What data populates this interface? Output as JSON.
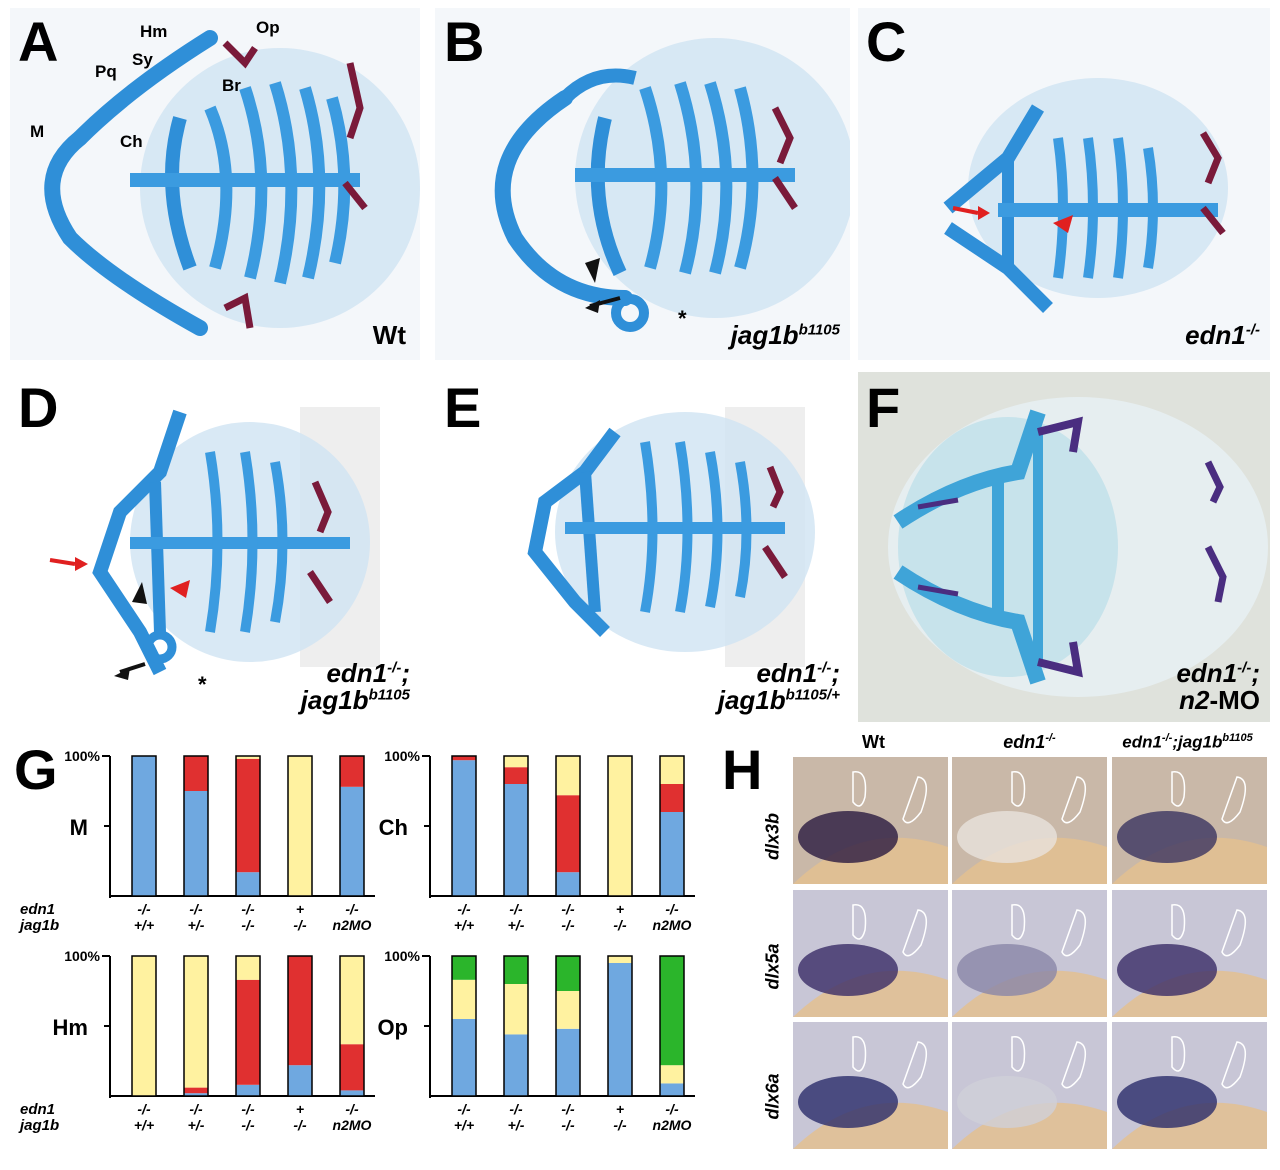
{
  "panels": {
    "A": {
      "letter": "A",
      "caption": "Wt"
    },
    "B": {
      "letter": "B",
      "caption_main": "jag1b",
      "caption_sup": "b1105"
    },
    "C": {
      "letter": "C",
      "caption_main": "edn1",
      "caption_sup": "-/-"
    },
    "D": {
      "letter": "D",
      "caption_l1_main": "edn1",
      "caption_l1_sup": "-/-",
      "caption_l1_tail": ";",
      "caption_l2_main": "jag1b",
      "caption_l2_sup": "b1105"
    },
    "E": {
      "letter": "E",
      "caption_l1_main": "edn1",
      "caption_l1_sup": "-/-",
      "caption_l1_tail": ";",
      "caption_l2_main": "jag1b",
      "caption_l2_sup": "b1105/+"
    },
    "F": {
      "letter": "F",
      "caption_l1_main": "edn1",
      "caption_l1_sup": "-/-",
      "caption_l1_tail": ";",
      "caption_l2_main": "n2",
      "caption_l2_tail": "-MO"
    },
    "G": {
      "letter": "G"
    },
    "H": {
      "letter": "H"
    }
  },
  "structure_labels": {
    "hm": "Hm",
    "op": "Op",
    "pq": "Pq",
    "sy": "Sy",
    "br": "Br",
    "m": "M",
    "ch": "Ch"
  },
  "markers": {
    "asterisk": "*"
  },
  "colors": {
    "blue": "#6fa8e0",
    "red": "#e03030",
    "yellow": "#fff2a0",
    "green": "#2bb52b",
    "cartilage": "#2f8fd8",
    "bone": "#7a1a3a"
  },
  "chart_data": [
    {
      "type": "bar",
      "stacked": true,
      "row_label": "M",
      "ytick": "100%",
      "categories": [
        "-/- +/+",
        "-/- +/-",
        "-/- -/-",
        "+ -/-",
        "-/- n2MO"
      ],
      "series": [
        {
          "color": "blue",
          "values": [
            100,
            75,
            17,
            0,
            78
          ]
        },
        {
          "color": "red",
          "values": [
            0,
            25,
            81,
            0,
            22
          ]
        },
        {
          "color": "yellow",
          "values": [
            0,
            0,
            2,
            100,
            0
          ]
        }
      ],
      "ylim": [
        0,
        100
      ]
    },
    {
      "type": "bar",
      "stacked": true,
      "row_label": "Ch",
      "ytick": "100%",
      "categories": [
        "-/- +/+",
        "-/- +/-",
        "-/- -/-",
        "+ -/-",
        "-/- n2MO"
      ],
      "series": [
        {
          "color": "blue",
          "values": [
            97,
            80,
            17,
            0,
            60
          ]
        },
        {
          "color": "red",
          "values": [
            3,
            12,
            55,
            0,
            20
          ]
        },
        {
          "color": "yellow",
          "values": [
            0,
            8,
            28,
            100,
            20
          ]
        }
      ],
      "ylim": [
        0,
        100
      ]
    },
    {
      "type": "bar",
      "stacked": true,
      "row_label": "Hm",
      "ytick": "100%",
      "categories": [
        "-/- +/+",
        "-/- +/-",
        "-/- -/-",
        "+ -/-",
        "-/- n2MO"
      ],
      "series": [
        {
          "color": "blue",
          "values": [
            0,
            2,
            8,
            22,
            4
          ]
        },
        {
          "color": "red",
          "values": [
            0,
            4,
            75,
            78,
            33
          ]
        },
        {
          "color": "yellow",
          "values": [
            100,
            94,
            17,
            0,
            63
          ]
        }
      ],
      "ylim": [
        0,
        100
      ]
    },
    {
      "type": "bar",
      "stacked": true,
      "row_label": "Op",
      "ytick": "100%",
      "categories": [
        "-/- +/+",
        "-/- +/-",
        "-/- -/-",
        "+ -/-",
        "-/- n2MO"
      ],
      "series": [
        {
          "color": "blue",
          "values": [
            55,
            44,
            48,
            95,
            9
          ]
        },
        {
          "color": "yellow",
          "values": [
            28,
            36,
            27,
            5,
            13
          ]
        },
        {
          "color": "green",
          "values": [
            17,
            20,
            25,
            0,
            78
          ]
        }
      ],
      "ylim": [
        0,
        100
      ]
    }
  ],
  "xlabels": {
    "axis_edn1": "edn1",
    "axis_jag1b": "jag1b",
    "edn1": [
      "-/-",
      "-/-",
      "-/-",
      "+",
      "-/-"
    ],
    "jag1b": [
      "+/+",
      "+/-",
      "-/-",
      "-/-",
      "n2MO"
    ]
  },
  "panel_h": {
    "col_wt": "Wt",
    "col_edn1_main": "edn1",
    "col_edn1_sup": "-/-",
    "col_double_main": "edn1",
    "col_double_sup": "-/-",
    "col_double_mid": ";jag1b",
    "col_double_sup2": "b1105",
    "rows": [
      "dlx3b",
      "dlx5a",
      "dlx6a"
    ]
  }
}
